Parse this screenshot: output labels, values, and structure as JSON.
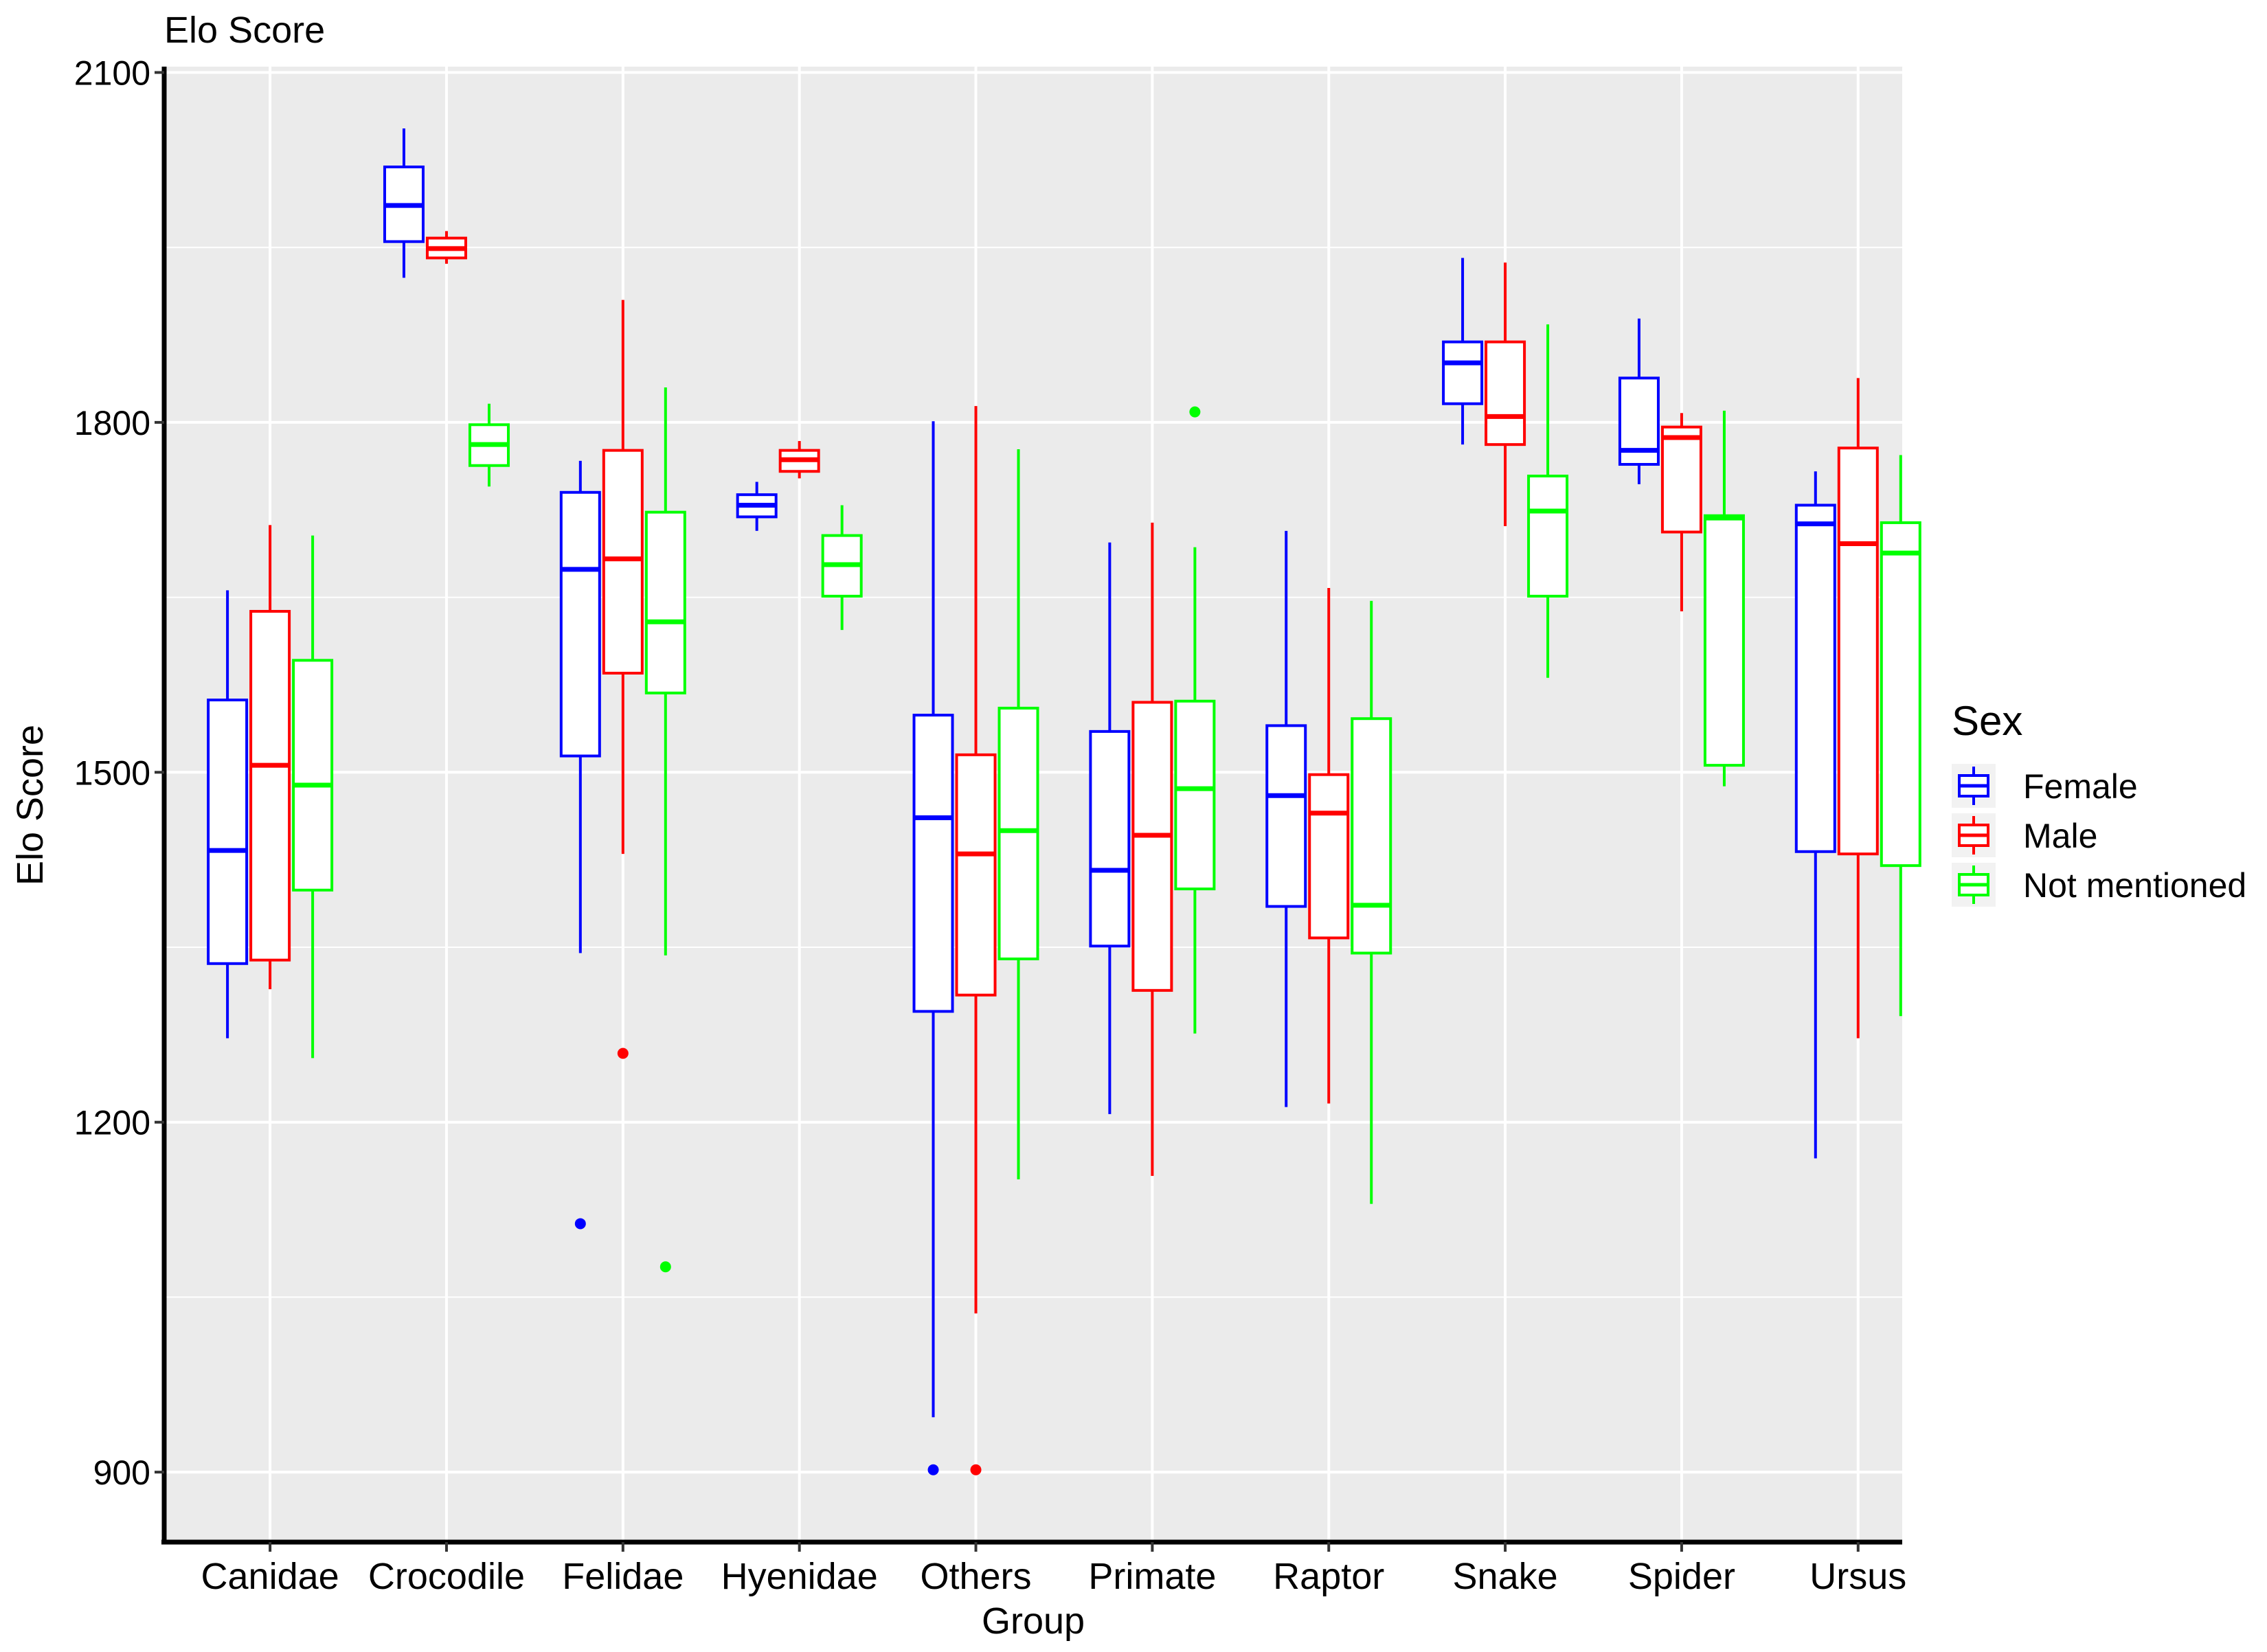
{
  "chart_data": {
    "type": "boxplot",
    "title": "Elo Score",
    "xlabel": "Group",
    "ylabel": "Elo Score",
    "ylim": [
      840,
      2105
    ],
    "yticks": [
      900,
      1200,
      1500,
      1800,
      2100
    ],
    "ytick_labels": [
      "900",
      "1200",
      "1500",
      "1800",
      "2100"
    ],
    "grid": true,
    "legend": {
      "title": "Sex",
      "position": "right"
    },
    "categories": [
      "Canidae",
      "Crocodile",
      "Felidae",
      "Hyenidae",
      "Others",
      "Primate",
      "Raptor",
      "Snake",
      "Spider",
      "Ursus"
    ],
    "series": [
      {
        "name": "Female",
        "color": "#0000ff",
        "boxes": [
          {
            "category": "Canidae",
            "min": 1272,
            "q1": 1336,
            "median": 1433,
            "q3": 1562,
            "max": 1656,
            "outliers": []
          },
          {
            "category": "Crocodile",
            "min": 1924,
            "q1": 1955,
            "median": 1986,
            "q3": 2019,
            "max": 2052,
            "outliers": []
          },
          {
            "category": "Felidae",
            "min": 1345,
            "q1": 1514,
            "median": 1674,
            "q3": 1740,
            "max": 1767,
            "outliers": [
              1113
            ]
          },
          {
            "category": "Hyenidae",
            "min": 1707,
            "q1": 1719,
            "median": 1729,
            "q3": 1738,
            "max": 1749,
            "outliers": []
          },
          {
            "category": "Others",
            "min": 947,
            "q1": 1295,
            "median": 1461,
            "q3": 1549,
            "max": 1801,
            "outliers": [
              902
            ]
          },
          {
            "category": "Primate",
            "min": 1207,
            "q1": 1351,
            "median": 1416,
            "q3": 1535,
            "max": 1697,
            "outliers": []
          },
          {
            "category": "Raptor",
            "min": 1213,
            "q1": 1385,
            "median": 1480,
            "q3": 1540,
            "max": 1707,
            "outliers": []
          },
          {
            "category": "Snake",
            "min": 1781,
            "q1": 1816,
            "median": 1851,
            "q3": 1869,
            "max": 1941,
            "outliers": []
          },
          {
            "category": "Spider",
            "min": 1747,
            "q1": 1764,
            "median": 1776,
            "q3": 1838,
            "max": 1889,
            "outliers": []
          },
          {
            "category": "Ursus",
            "min": 1169,
            "q1": 1432,
            "median": 1713,
            "q3": 1729,
            "max": 1758,
            "outliers": []
          }
        ]
      },
      {
        "name": "Male",
        "color": "#ff0000",
        "boxes": [
          {
            "category": "Canidae",
            "min": 1314,
            "q1": 1339,
            "median": 1506,
            "q3": 1638,
            "max": 1712,
            "outliers": []
          },
          {
            "category": "Crocodile",
            "min": 1936,
            "q1": 1941,
            "median": 1949,
            "q3": 1958,
            "max": 1964,
            "outliers": []
          },
          {
            "category": "Felidae",
            "min": 1430,
            "q1": 1585,
            "median": 1683,
            "q3": 1776,
            "max": 1905,
            "outliers": [
              1259
            ]
          },
          {
            "category": "Hyenidae",
            "min": 1752,
            "q1": 1758,
            "median": 1768,
            "q3": 1776,
            "max": 1784,
            "outliers": []
          },
          {
            "category": "Others",
            "min": 1036,
            "q1": 1309,
            "median": 1430,
            "q3": 1515,
            "max": 1814,
            "outliers": [
              902
            ]
          },
          {
            "category": "Primate",
            "min": 1154,
            "q1": 1313,
            "median": 1446,
            "q3": 1560,
            "max": 1714,
            "outliers": []
          },
          {
            "category": "Raptor",
            "min": 1216,
            "q1": 1358,
            "median": 1465,
            "q3": 1498,
            "max": 1658,
            "outliers": []
          },
          {
            "category": "Snake",
            "min": 1711,
            "q1": 1781,
            "median": 1805,
            "q3": 1869,
            "max": 1937,
            "outliers": []
          },
          {
            "category": "Spider",
            "min": 1638,
            "q1": 1706,
            "median": 1787,
            "q3": 1796,
            "max": 1808,
            "outliers": []
          },
          {
            "category": "Ursus",
            "min": 1272,
            "q1": 1430,
            "median": 1696,
            "q3": 1778,
            "max": 1838,
            "outliers": []
          }
        ]
      },
      {
        "name": "Not mentioned",
        "color": "#00ff00",
        "boxes": [
          {
            "category": "Canidae",
            "min": 1255,
            "q1": 1399,
            "median": 1489,
            "q3": 1596,
            "max": 1703,
            "outliers": []
          },
          {
            "category": "Crocodile",
            "min": 1745,
            "q1": 1763,
            "median": 1781,
            "q3": 1798,
            "max": 1816,
            "outliers": []
          },
          {
            "category": "Felidae",
            "min": 1343,
            "q1": 1568,
            "median": 1629,
            "q3": 1723,
            "max": 1830,
            "outliers": [
              1076
            ]
          },
          {
            "category": "Hyenidae",
            "min": 1622,
            "q1": 1651,
            "median": 1678,
            "q3": 1703,
            "max": 1729,
            "outliers": []
          },
          {
            "category": "Others",
            "min": 1151,
            "q1": 1340,
            "median": 1450,
            "q3": 1555,
            "max": 1777,
            "outliers": []
          },
          {
            "category": "Primate",
            "min": 1276,
            "q1": 1400,
            "median": 1486,
            "q3": 1561,
            "max": 1693,
            "outliers": [
              1809
            ]
          },
          {
            "category": "Raptor",
            "min": 1130,
            "q1": 1345,
            "median": 1386,
            "q3": 1546,
            "max": 1647,
            "outliers": []
          },
          {
            "category": "Snake",
            "min": 1581,
            "q1": 1651,
            "median": 1724,
            "q3": 1754,
            "max": 1884,
            "outliers": []
          },
          {
            "category": "Spider",
            "min": 1488,
            "q1": 1506,
            "median": 1718,
            "q3": 1720,
            "max": 1810,
            "outliers": []
          },
          {
            "category": "Ursus",
            "min": 1291,
            "q1": 1420,
            "median": 1688,
            "q3": 1714,
            "max": 1772,
            "outliers": []
          }
        ]
      }
    ]
  }
}
